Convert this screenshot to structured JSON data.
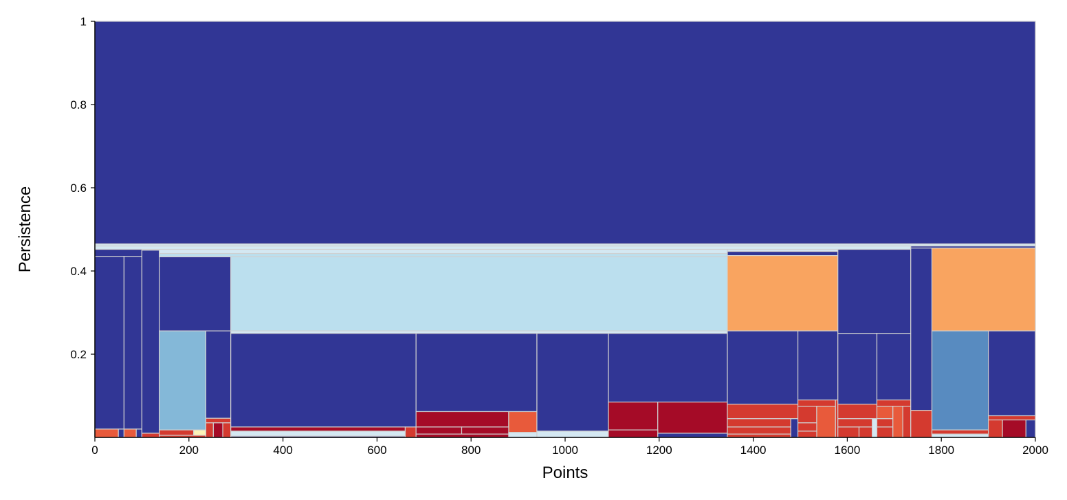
{
  "chart_data": {
    "type": "persistence-rectangles",
    "xlabel": "Points",
    "ylabel": "Persistence",
    "xlim": [
      0,
      2000
    ],
    "ylim": [
      0,
      1
    ],
    "x_ticks": [
      0,
      200,
      400,
      600,
      800,
      1000,
      1200,
      1400,
      1600,
      1800,
      2000
    ],
    "y_ticks": [
      0.2,
      0.4,
      0.6,
      0.8,
      1
    ],
    "grid": false,
    "legend": "none",
    "colors": {
      "navy": "#313695",
      "light-blue": "#bbdfee",
      "sky-blue": "#84b8d8",
      "steel-blue": "#588bc0",
      "pale-blue": "#d4e8f2",
      "cream": "#fdf3b7",
      "orange": "#f9a460",
      "red-orange": "#e85a3b",
      "red": "#d43a2f",
      "dark-red": "#a50b27",
      "edge": "#d0d0d0"
    },
    "rects": [
      {
        "x0": 0,
        "x1": 2000,
        "y0": 0.465,
        "y1": 1.0,
        "color": "navy"
      },
      {
        "x0": 0,
        "x1": 2000,
        "y0": 0.46,
        "y1": 0.465,
        "color": "pale-blue"
      },
      {
        "x0": 0,
        "x1": 1735,
        "y0": 0.452,
        "y1": 0.46,
        "color": "pale-blue"
      },
      {
        "x0": 1735,
        "x1": 2000,
        "y0": 0.455,
        "y1": 0.46,
        "color": "navy"
      },
      {
        "x0": 0,
        "x1": 100,
        "y0": 0.435,
        "y1": 0.452,
        "color": "navy"
      },
      {
        "x0": 0,
        "x1": 62,
        "y0": 0.02,
        "y1": 0.435,
        "color": "navy"
      },
      {
        "x0": 0,
        "x1": 50,
        "y0": 0.0,
        "y1": 0.02,
        "color": "red-orange"
      },
      {
        "x0": 50,
        "x1": 62,
        "y0": 0.0,
        "y1": 0.02,
        "color": "navy"
      },
      {
        "x0": 62,
        "x1": 100,
        "y0": 0.02,
        "y1": 0.435,
        "color": "navy"
      },
      {
        "x0": 62,
        "x1": 88,
        "y0": 0.0,
        "y1": 0.02,
        "color": "red-orange"
      },
      {
        "x0": 88,
        "x1": 100,
        "y0": 0.0,
        "y1": 0.02,
        "color": "navy"
      },
      {
        "x0": 100,
        "x1": 137,
        "y0": 0.01,
        "y1": 0.45,
        "color": "navy"
      },
      {
        "x0": 100,
        "x1": 137,
        "y0": 0.0,
        "y1": 0.01,
        "color": "red"
      },
      {
        "x0": 137,
        "x1": 1345,
        "y0": 0.442,
        "y1": 0.452,
        "color": "pale-blue"
      },
      {
        "x0": 137,
        "x1": 1345,
        "y0": 0.434,
        "y1": 0.442,
        "color": "light-blue"
      },
      {
        "x0": 137,
        "x1": 289,
        "y0": 0.256,
        "y1": 0.434,
        "color": "navy"
      },
      {
        "x0": 137,
        "x1": 236,
        "y0": 0.018,
        "y1": 0.256,
        "color": "sky-blue"
      },
      {
        "x0": 137,
        "x1": 210,
        "y0": 0.005,
        "y1": 0.018,
        "color": "red"
      },
      {
        "x0": 210,
        "x1": 236,
        "y0": 0.005,
        "y1": 0.018,
        "color": "cream"
      },
      {
        "x0": 137,
        "x1": 236,
        "y0": 0.0,
        "y1": 0.005,
        "color": "red"
      },
      {
        "x0": 236,
        "x1": 289,
        "y0": 0.046,
        "y1": 0.256,
        "color": "navy"
      },
      {
        "x0": 236,
        "x1": 289,
        "y0": 0.035,
        "y1": 0.046,
        "color": "red"
      },
      {
        "x0": 236,
        "x1": 252,
        "y0": 0.0,
        "y1": 0.035,
        "color": "red"
      },
      {
        "x0": 252,
        "x1": 272,
        "y0": 0.0,
        "y1": 0.035,
        "color": "dark-red"
      },
      {
        "x0": 272,
        "x1": 289,
        "y0": 0.0,
        "y1": 0.035,
        "color": "red"
      },
      {
        "x0": 289,
        "x1": 1345,
        "y0": 0.256,
        "y1": 0.434,
        "color": "light-blue"
      },
      {
        "x0": 289,
        "x1": 1345,
        "y0": 0.25,
        "y1": 0.256,
        "color": "pale-blue"
      },
      {
        "x0": 289,
        "x1": 683,
        "y0": 0.025,
        "y1": 0.25,
        "color": "navy"
      },
      {
        "x0": 289,
        "x1": 660,
        "y0": 0.015,
        "y1": 0.025,
        "color": "dark-red"
      },
      {
        "x0": 660,
        "x1": 683,
        "y0": 0.0,
        "y1": 0.025,
        "color": "red"
      },
      {
        "x0": 289,
        "x1": 660,
        "y0": 0.003,
        "y1": 0.015,
        "color": "pale-blue"
      },
      {
        "x0": 289,
        "x1": 660,
        "y0": 0.0,
        "y1": 0.003,
        "color": "navy"
      },
      {
        "x0": 683,
        "x1": 940,
        "y0": 0.062,
        "y1": 0.25,
        "color": "navy"
      },
      {
        "x0": 683,
        "x1": 880,
        "y0": 0.025,
        "y1": 0.062,
        "color": "dark-red"
      },
      {
        "x0": 880,
        "x1": 940,
        "y0": 0.012,
        "y1": 0.062,
        "color": "red-orange"
      },
      {
        "x0": 683,
        "x1": 780,
        "y0": 0.008,
        "y1": 0.025,
        "color": "dark-red"
      },
      {
        "x0": 780,
        "x1": 880,
        "y0": 0.008,
        "y1": 0.025,
        "color": "dark-red"
      },
      {
        "x0": 683,
        "x1": 880,
        "y0": 0.0,
        "y1": 0.008,
        "color": "dark-red"
      },
      {
        "x0": 880,
        "x1": 940,
        "y0": 0.0,
        "y1": 0.012,
        "color": "pale-blue"
      },
      {
        "x0": 940,
        "x1": 1092,
        "y0": 0.015,
        "y1": 0.25,
        "color": "navy"
      },
      {
        "x0": 940,
        "x1": 1092,
        "y0": 0.0,
        "y1": 0.015,
        "color": "pale-blue"
      },
      {
        "x0": 1092,
        "x1": 1345,
        "y0": 0.085,
        "y1": 0.25,
        "color": "navy"
      },
      {
        "x0": 1092,
        "x1": 1197,
        "y0": 0.018,
        "y1": 0.085,
        "color": "dark-red"
      },
      {
        "x0": 1197,
        "x1": 1345,
        "y0": 0.01,
        "y1": 0.085,
        "color": "dark-red"
      },
      {
        "x0": 1092,
        "x1": 1197,
        "y0": 0.0,
        "y1": 0.018,
        "color": "dark-red"
      },
      {
        "x0": 1197,
        "x1": 1345,
        "y0": 0.0,
        "y1": 0.01,
        "color": "navy"
      },
      {
        "x0": 1345,
        "x1": 1580,
        "y0": 0.447,
        "y1": 0.452,
        "color": "pale-blue"
      },
      {
        "x0": 1345,
        "x1": 1580,
        "y0": 0.437,
        "y1": 0.447,
        "color": "navy"
      },
      {
        "x0": 1345,
        "x1": 1580,
        "y0": 0.256,
        "y1": 0.437,
        "color": "orange"
      },
      {
        "x0": 1345,
        "x1": 1495,
        "y0": 0.08,
        "y1": 0.256,
        "color": "navy"
      },
      {
        "x0": 1345,
        "x1": 1495,
        "y0": 0.045,
        "y1": 0.08,
        "color": "red"
      },
      {
        "x0": 1345,
        "x1": 1480,
        "y0": 0.025,
        "y1": 0.045,
        "color": "red"
      },
      {
        "x0": 1345,
        "x1": 1480,
        "y0": 0.008,
        "y1": 0.025,
        "color": "red"
      },
      {
        "x0": 1345,
        "x1": 1480,
        "y0": 0.0,
        "y1": 0.008,
        "color": "red"
      },
      {
        "x0": 1480,
        "x1": 1495,
        "y0": 0.0,
        "y1": 0.045,
        "color": "navy"
      },
      {
        "x0": 1495,
        "x1": 1580,
        "y0": 0.09,
        "y1": 0.256,
        "color": "navy"
      },
      {
        "x0": 1495,
        "x1": 1575,
        "y0": 0.075,
        "y1": 0.09,
        "color": "red"
      },
      {
        "x0": 1495,
        "x1": 1535,
        "y0": 0.035,
        "y1": 0.075,
        "color": "red"
      },
      {
        "x0": 1535,
        "x1": 1575,
        "y0": 0.0,
        "y1": 0.075,
        "color": "red-orange"
      },
      {
        "x0": 1495,
        "x1": 1535,
        "y0": 0.015,
        "y1": 0.035,
        "color": "red"
      },
      {
        "x0": 1495,
        "x1": 1535,
        "y0": 0.0,
        "y1": 0.015,
        "color": "red"
      },
      {
        "x0": 1575,
        "x1": 1580,
        "y0": 0.0,
        "y1": 0.09,
        "color": "red"
      },
      {
        "x0": 1580,
        "x1": 1735,
        "y0": 0.25,
        "y1": 0.452,
        "color": "navy"
      },
      {
        "x0": 1580,
        "x1": 1663,
        "y0": 0.08,
        "y1": 0.25,
        "color": "navy"
      },
      {
        "x0": 1580,
        "x1": 1663,
        "y0": 0.045,
        "y1": 0.08,
        "color": "red"
      },
      {
        "x0": 1580,
        "x1": 1653,
        "y0": 0.025,
        "y1": 0.045,
        "color": "red"
      },
      {
        "x0": 1580,
        "x1": 1625,
        "y0": 0.0,
        "y1": 0.025,
        "color": "red"
      },
      {
        "x0": 1625,
        "x1": 1653,
        "y0": 0.0,
        "y1": 0.025,
        "color": "red"
      },
      {
        "x0": 1653,
        "x1": 1663,
        "y0": 0.0,
        "y1": 0.045,
        "color": "pale-blue"
      },
      {
        "x0": 1663,
        "x1": 1735,
        "y0": 0.09,
        "y1": 0.25,
        "color": "navy"
      },
      {
        "x0": 1663,
        "x1": 1735,
        "y0": 0.075,
        "y1": 0.09,
        "color": "red"
      },
      {
        "x0": 1663,
        "x1": 1697,
        "y0": 0.045,
        "y1": 0.075,
        "color": "red-orange"
      },
      {
        "x0": 1663,
        "x1": 1697,
        "y0": 0.025,
        "y1": 0.045,
        "color": "red"
      },
      {
        "x0": 1663,
        "x1": 1697,
        "y0": 0.0,
        "y1": 0.025,
        "color": "red"
      },
      {
        "x0": 1697,
        "x1": 1718,
        "y0": 0.0,
        "y1": 0.075,
        "color": "red-orange"
      },
      {
        "x0": 1718,
        "x1": 1735,
        "y0": 0.0,
        "y1": 0.075,
        "color": "red"
      },
      {
        "x0": 1735,
        "x1": 1780,
        "y0": 0.065,
        "y1": 0.455,
        "color": "navy"
      },
      {
        "x0": 1735,
        "x1": 1780,
        "y0": 0.0,
        "y1": 0.065,
        "color": "red"
      },
      {
        "x0": 1780,
        "x1": 2000,
        "y0": 0.256,
        "y1": 0.455,
        "color": "orange"
      },
      {
        "x0": 1780,
        "x1": 1900,
        "y0": 0.018,
        "y1": 0.256,
        "color": "steel-blue"
      },
      {
        "x0": 1780,
        "x1": 1900,
        "y0": 0.008,
        "y1": 0.018,
        "color": "red"
      },
      {
        "x0": 1780,
        "x1": 1900,
        "y0": 0.0,
        "y1": 0.008,
        "color": "pale-blue"
      },
      {
        "x0": 1900,
        "x1": 2000,
        "y0": 0.052,
        "y1": 0.256,
        "color": "navy"
      },
      {
        "x0": 1900,
        "x1": 2000,
        "y0": 0.042,
        "y1": 0.052,
        "color": "red"
      },
      {
        "x0": 1900,
        "x1": 1930,
        "y0": 0.0,
        "y1": 0.042,
        "color": "red"
      },
      {
        "x0": 1930,
        "x1": 1980,
        "y0": 0.0,
        "y1": 0.042,
        "color": "dark-red"
      },
      {
        "x0": 1980,
        "x1": 2000,
        "y0": 0.0,
        "y1": 0.042,
        "color": "navy"
      }
    ]
  }
}
